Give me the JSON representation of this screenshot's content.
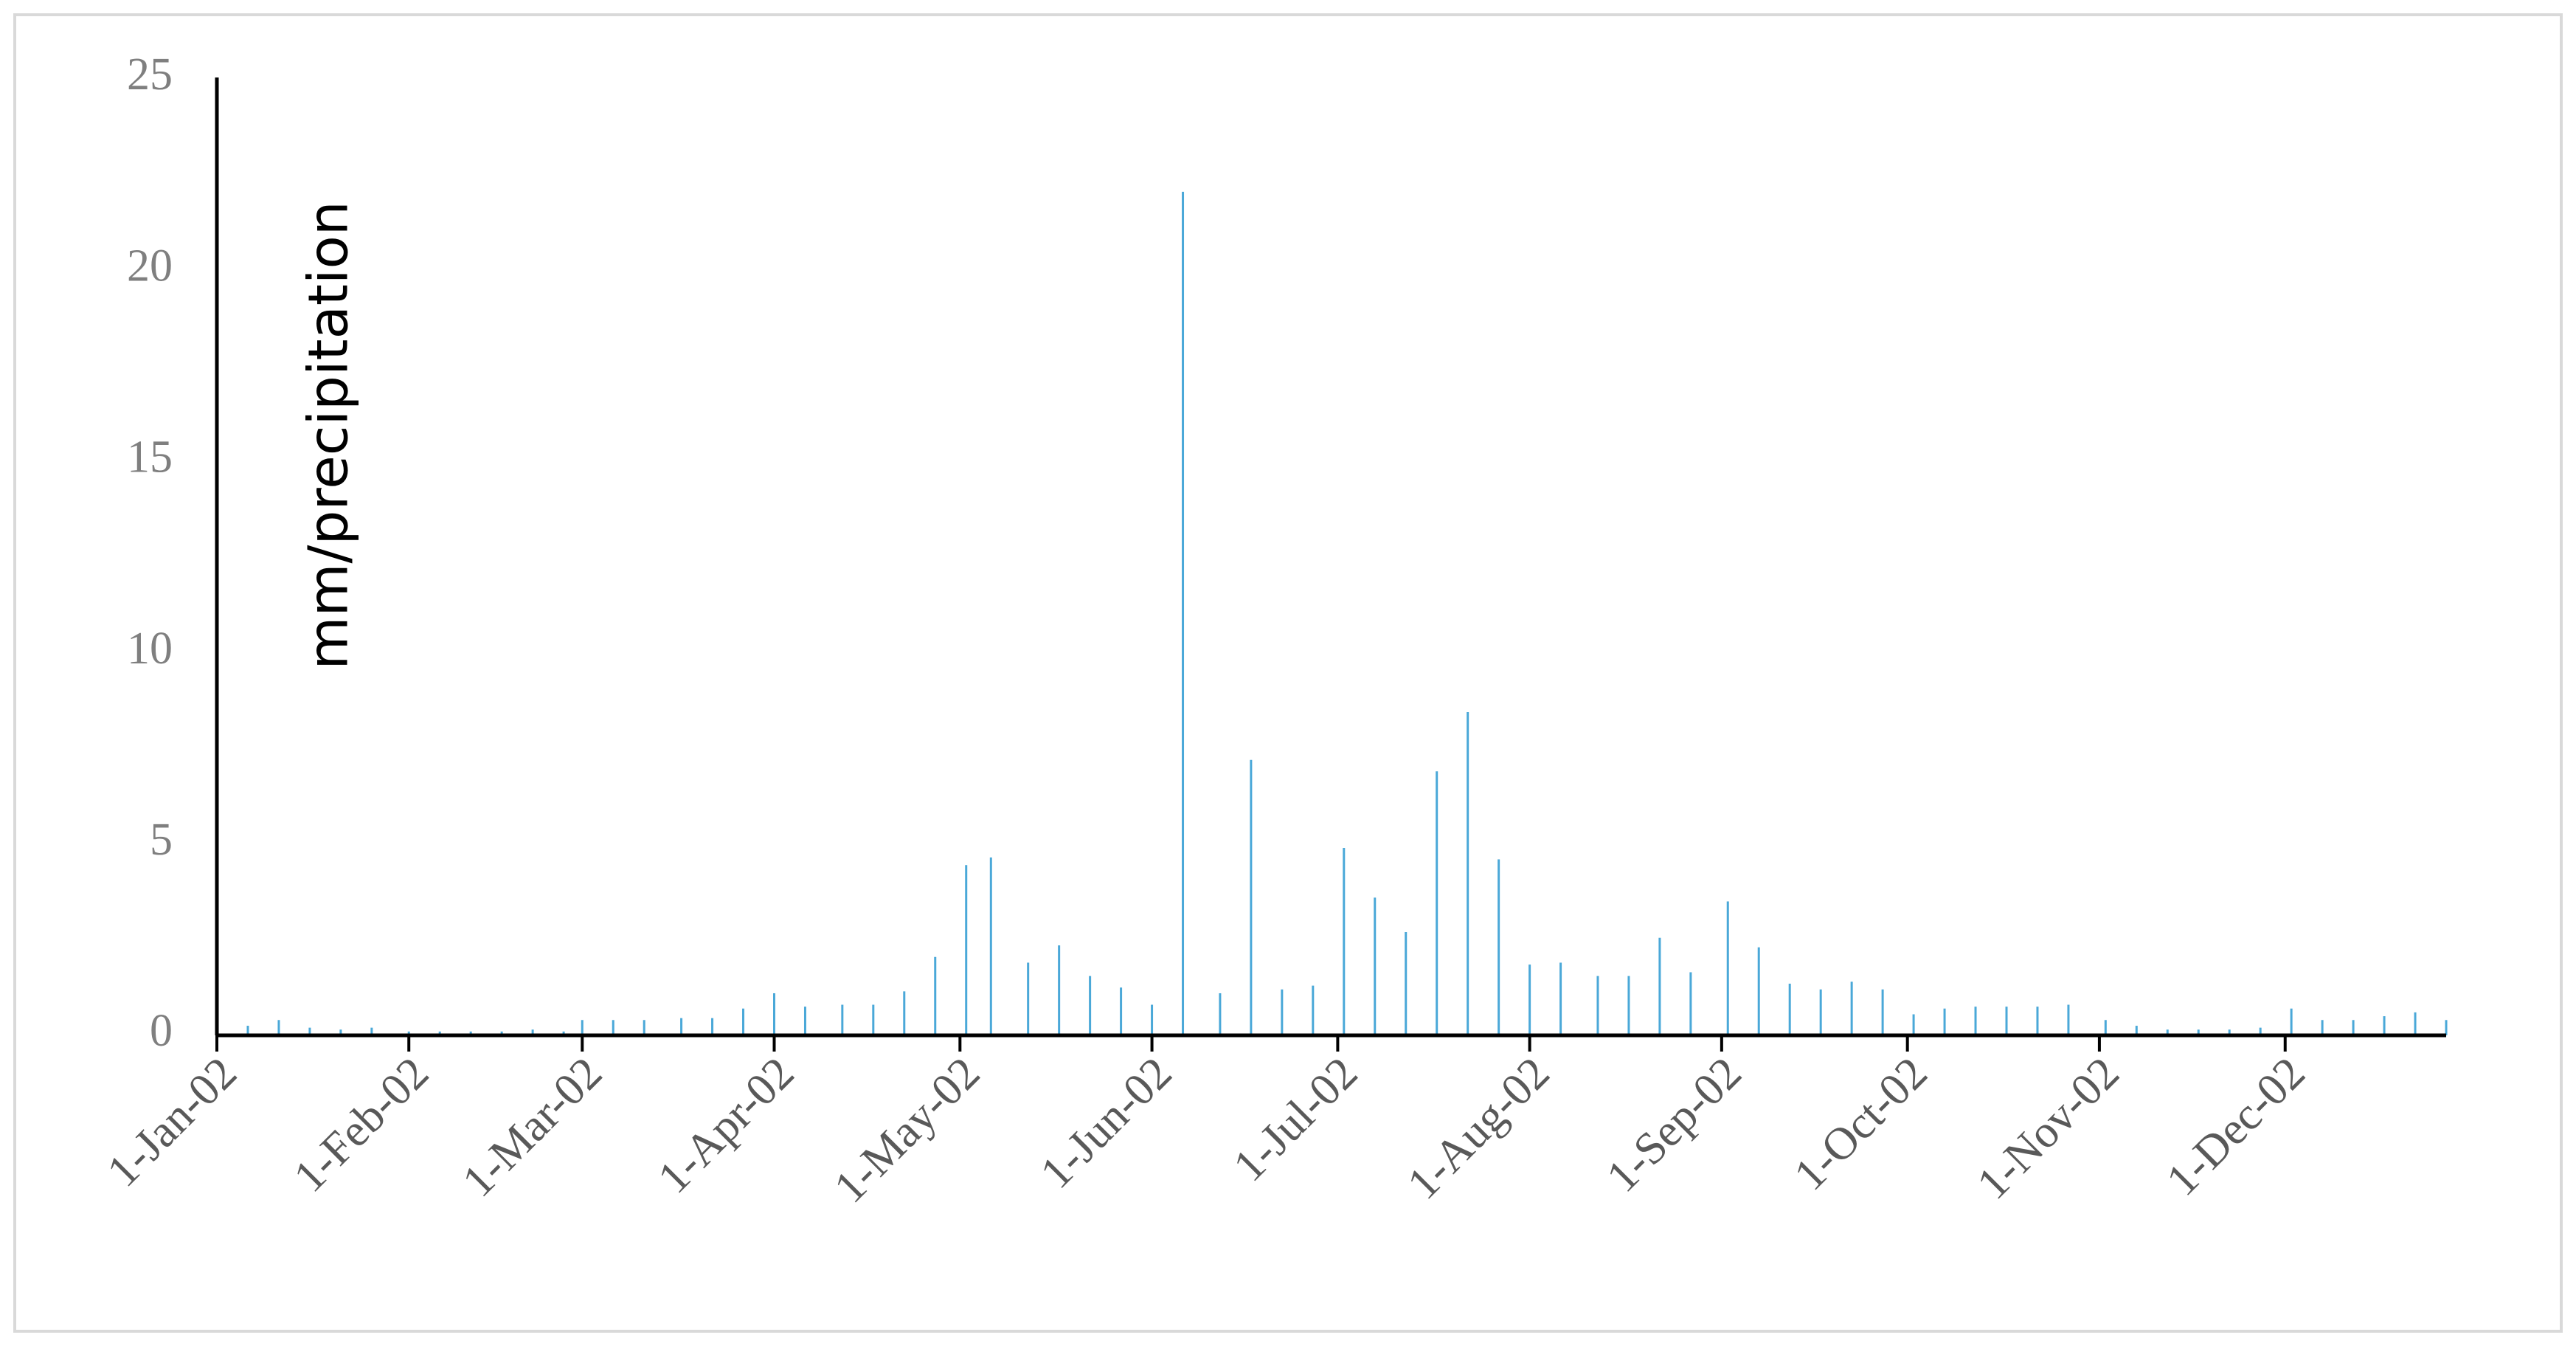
{
  "chart_data": {
    "type": "bar",
    "y_label": "mm/precipitation",
    "color": "#4aa8d8",
    "x": [
      "2002-01-01",
      "2002-01-06",
      "2002-01-11",
      "2002-01-16",
      "2002-01-21",
      "2002-01-26",
      "2002-02-01",
      "2002-02-06",
      "2002-02-11",
      "2002-02-16",
      "2002-02-21",
      "2002-02-26",
      "2002-03-01",
      "2002-03-06",
      "2002-03-11",
      "2002-03-17",
      "2002-03-22",
      "2002-03-27",
      "2002-04-01",
      "2002-04-06",
      "2002-04-12",
      "2002-04-17",
      "2002-04-22",
      "2002-04-27",
      "2002-05-02",
      "2002-05-06",
      "2002-05-12",
      "2002-05-17",
      "2002-05-22",
      "2002-05-27",
      "2002-06-01",
      "2002-06-06",
      "2002-06-12",
      "2002-06-17",
      "2002-06-22",
      "2002-06-27",
      "2002-07-02",
      "2002-07-07",
      "2002-07-12",
      "2002-07-17",
      "2002-07-22",
      "2002-07-27",
      "2002-08-01",
      "2002-08-06",
      "2002-08-12",
      "2002-08-17",
      "2002-08-22",
      "2002-08-27",
      "2002-09-02",
      "2002-09-07",
      "2002-09-12",
      "2002-09-17",
      "2002-09-22",
      "2002-09-27",
      "2002-10-02",
      "2002-10-07",
      "2002-10-12",
      "2002-10-17",
      "2002-10-22",
      "2002-10-27",
      "2002-11-02",
      "2002-11-07",
      "2002-11-12",
      "2002-11-17",
      "2002-11-22",
      "2002-11-27",
      "2002-12-02",
      "2002-12-07",
      "2002-12-12",
      "2002-12-17",
      "2002-12-22",
      "2002-12-27"
    ],
    "values": [
      0.2,
      0.25,
      0.4,
      0.2,
      0.15,
      0.2,
      0.1,
      0.1,
      0.1,
      0.1,
      0.15,
      0.1,
      0.4,
      0.4,
      0.4,
      0.45,
      0.45,
      0.7,
      1.1,
      0.75,
      0.8,
      0.8,
      1.15,
      2.05,
      4.45,
      4.65,
      1.9,
      2.35,
      1.55,
      1.25,
      0.8,
      22.05,
      1.1,
      7.2,
      1.2,
      1.3,
      4.9,
      3.6,
      2.7,
      6.9,
      8.45,
      4.6,
      1.85,
      1.9,
      1.55,
      1.55,
      2.55,
      1.65,
      3.5,
      2.3,
      1.35,
      1.2,
      1.4,
      1.2,
      0.55,
      0.7,
      0.75,
      0.75,
      0.75,
      0.8,
      0.4,
      0.25,
      0.15,
      0.15,
      0.15,
      0.2,
      0.7,
      0.4,
      0.4,
      0.5,
      0.6,
      0.4
    ],
    "xlim": [
      "2002-01-01",
      "2002-12-27"
    ],
    "xticks": [
      {
        "value": "2002-01-01",
        "label": "1-Jan-02"
      },
      {
        "value": "2002-02-01",
        "label": "1-Feb-02"
      },
      {
        "value": "2002-03-01",
        "label": "1-Mar-02"
      },
      {
        "value": "2002-04-01",
        "label": "1-Apr-02"
      },
      {
        "value": "2002-05-01",
        "label": "1-May-02"
      },
      {
        "value": "2002-06-01",
        "label": "1-Jun-02"
      },
      {
        "value": "2002-07-01",
        "label": "1-Jul-02"
      },
      {
        "value": "2002-08-01",
        "label": "1-Aug-02"
      },
      {
        "value": "2002-09-01",
        "label": "1-Sep-02"
      },
      {
        "value": "2002-10-01",
        "label": "1-Oct-02"
      },
      {
        "value": "2002-11-01",
        "label": "1-Nov-02"
      },
      {
        "value": "2002-12-01",
        "label": "1-Dec-02"
      }
    ],
    "ylim": [
      0,
      25
    ],
    "yticks": [
      0,
      5,
      10,
      15,
      20,
      25
    ]
  }
}
